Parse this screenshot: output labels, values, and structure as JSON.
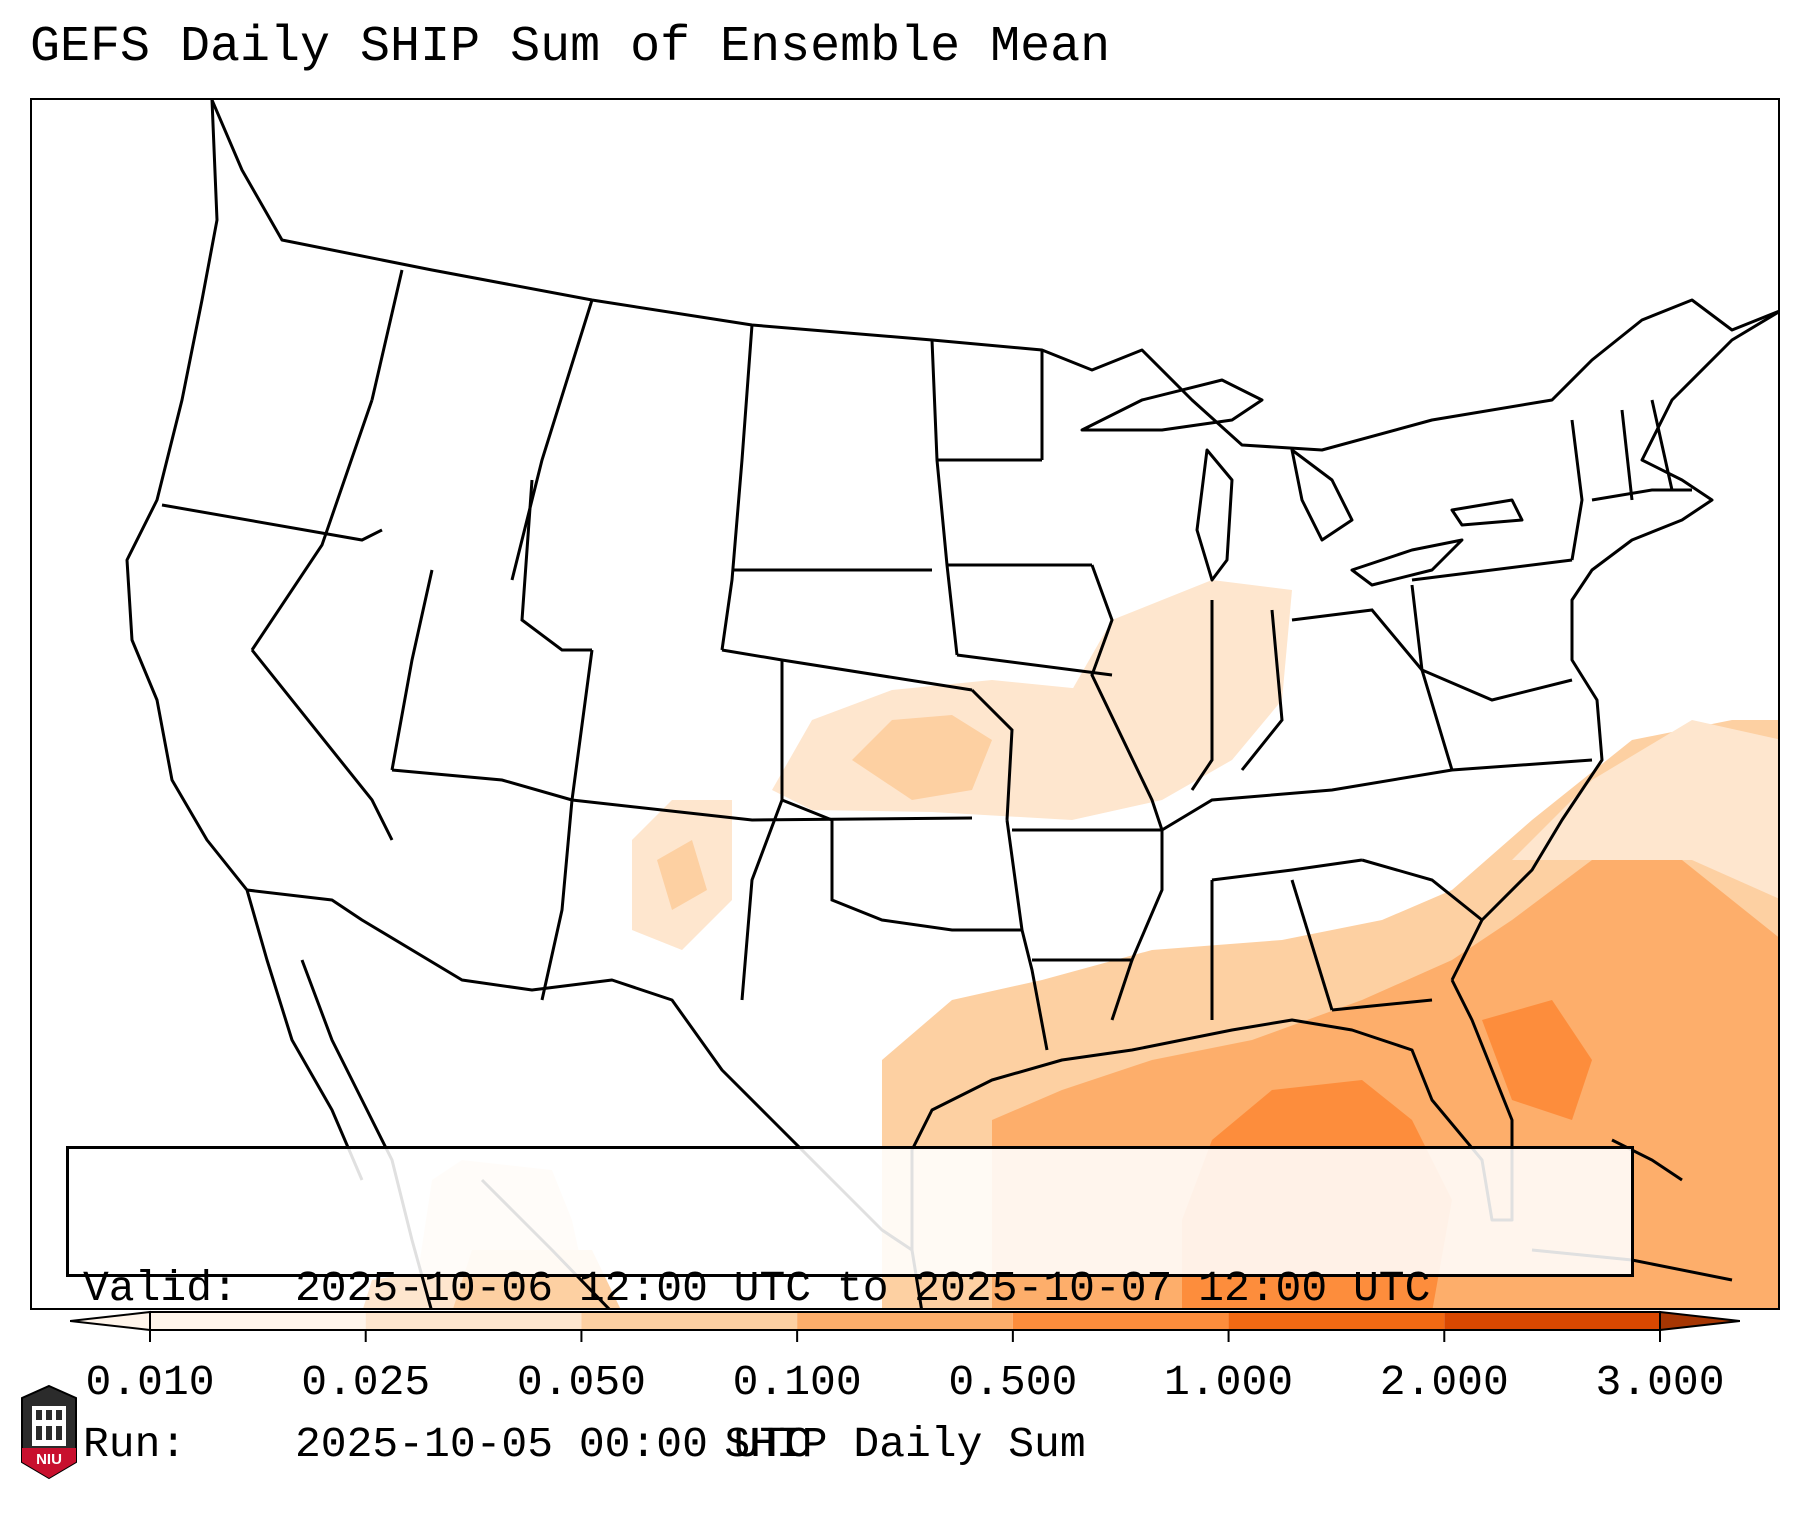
{
  "title": "GEFS Daily SHIP Sum of Ensemble Mean",
  "info": {
    "valid_label": "Valid:",
    "valid_value": "2025-10-06 12:00 UTC to 2025-10-07 12:00 UTC",
    "run_label": "Run:",
    "run_value": "2025-10-05 00:00 UTC"
  },
  "colorbar": {
    "label": "SHIP Daily Sum",
    "ticks": [
      "0.010",
      "0.025",
      "0.050",
      "0.100",
      "0.500",
      "1.000",
      "2.000",
      "3.000"
    ],
    "colors": [
      "#fff5eb",
      "#fee6ce",
      "#fdd0a2",
      "#fdae6b",
      "#fd8d3c",
      "#f16913",
      "#d94801",
      "#a63603"
    ],
    "extend": "both"
  },
  "map": {
    "region": "CONUS",
    "shading_colors": {
      "very_light": "#fff5eb",
      "light": "#fee6ce",
      "mid": "#fdd0a2",
      "orange": "#fdae6b",
      "dark": "#fd8d3c"
    }
  },
  "logo": {
    "text": "NIU",
    "icon": "niu-building-icon",
    "color": "#c8102e"
  }
}
